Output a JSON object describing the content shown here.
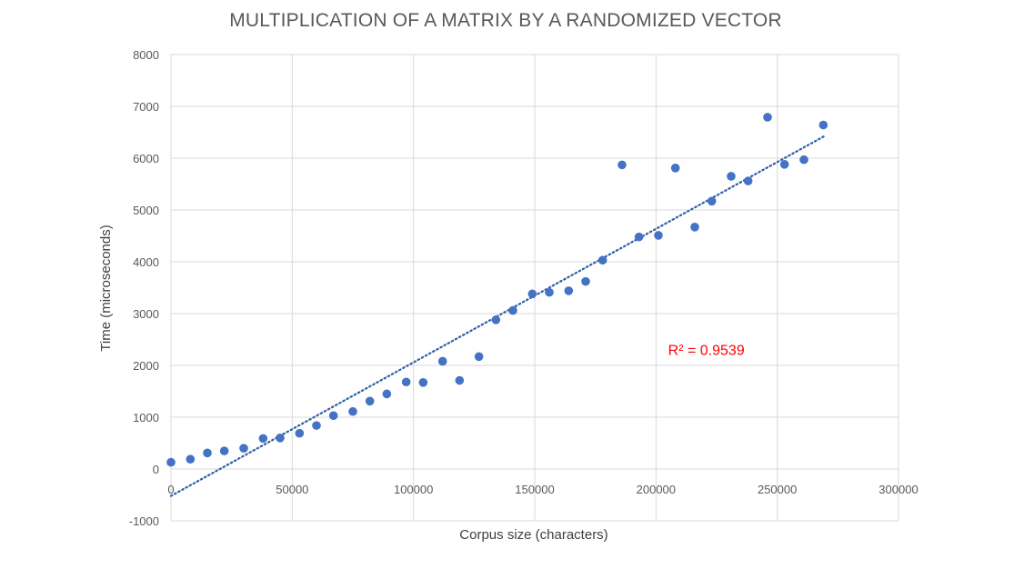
{
  "chart_data": {
    "type": "scatter",
    "title": "MULTIPLICATION OF A MATRIX BY A RANDOMIZED VECTOR",
    "xlabel": "Corpus size (characters)",
    "ylabel": "Time (microseconds)",
    "xlim": [
      0,
      300000
    ],
    "ylim": [
      -1000,
      8000
    ],
    "xticks": [
      0,
      50000,
      100000,
      150000,
      200000,
      250000,
      300000
    ],
    "yticks": [
      -1000,
      0,
      1000,
      2000,
      3000,
      4000,
      5000,
      6000,
      7000,
      8000
    ],
    "grid": true,
    "point_color": "#4472c4",
    "trendline": {
      "type": "linear",
      "style": "dotted",
      "color": "#2e5fa8",
      "x_range": [
        0,
        270000
      ],
      "y_at_start": -520,
      "y_at_end": 6440
    },
    "annotation": {
      "text": "R² = 0.9539",
      "color": "#ff0000",
      "x": 205000,
      "y": 2200
    },
    "series": [
      {
        "points": [
          [
            0,
            130
          ],
          [
            8000,
            190
          ],
          [
            15000,
            310
          ],
          [
            22000,
            350
          ],
          [
            30000,
            400
          ],
          [
            38000,
            590
          ],
          [
            45000,
            600
          ],
          [
            53000,
            690
          ],
          [
            60000,
            840
          ],
          [
            67000,
            1030
          ],
          [
            75000,
            1110
          ],
          [
            82000,
            1310
          ],
          [
            89000,
            1450
          ],
          [
            97000,
            1680
          ],
          [
            104000,
            1670
          ],
          [
            112000,
            2080
          ],
          [
            119000,
            1710
          ],
          [
            127000,
            2170
          ],
          [
            134000,
            2880
          ],
          [
            141000,
            3060
          ],
          [
            149000,
            3380
          ],
          [
            156000,
            3410
          ],
          [
            164000,
            3440
          ],
          [
            171000,
            3620
          ],
          [
            178000,
            4030
          ],
          [
            186000,
            5870
          ],
          [
            193000,
            4480
          ],
          [
            201000,
            4510
          ],
          [
            208000,
            5810
          ],
          [
            216000,
            4670
          ],
          [
            223000,
            5170
          ],
          [
            231000,
            5650
          ],
          [
            238000,
            5560
          ],
          [
            246000,
            6790
          ],
          [
            253000,
            5880
          ],
          [
            261000,
            5970
          ],
          [
            269000,
            6640
          ]
        ]
      }
    ]
  }
}
